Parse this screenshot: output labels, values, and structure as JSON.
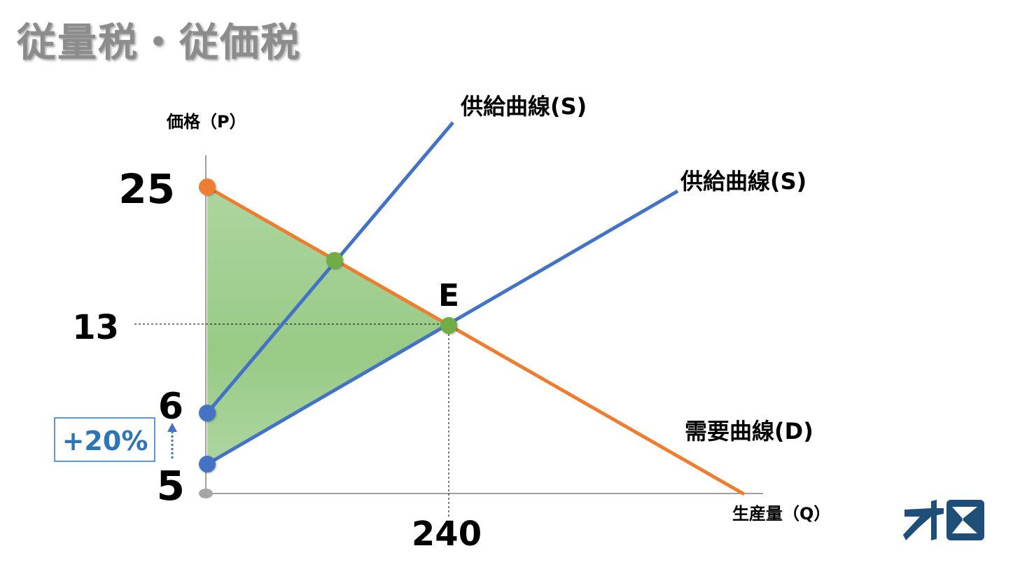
{
  "slide": {
    "title": "従量税・従価税"
  },
  "diagram": {
    "y_axis_label": "価格（P）",
    "x_axis_label": "生産量（Q）",
    "tick_labels": {
      "p_25": "25",
      "p_13": "13",
      "p_6": "6",
      "p_5": "5",
      "q_240": "240"
    },
    "equilibrium_label": "E",
    "supply_curve_shifted_label": "供給曲線(S)",
    "supply_curve_original_label": "供給曲線(S)",
    "demand_curve_label": "需要曲線(D)",
    "tax_badge": "+20%",
    "colors": {
      "supply": "#4472c4",
      "demand": "#ed7d31",
      "surplus_fill": "#8cc47a",
      "point_green": "#70ad47",
      "point_blue": "#4472c4",
      "point_orange": "#ed7d31",
      "point_gray": "#a6a6a6",
      "badge": "#2e75b6"
    }
  },
  "logo": {
    "name": "logo-icon"
  }
}
